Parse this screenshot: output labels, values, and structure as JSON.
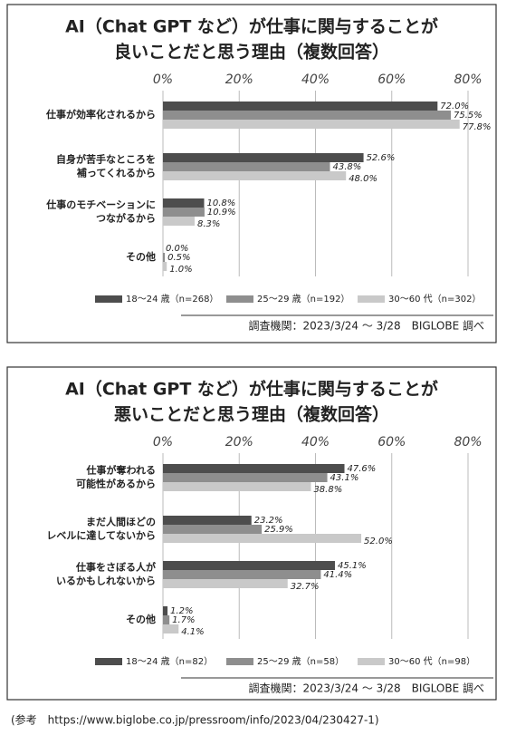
{
  "chart_data": [
    {
      "type": "bar",
      "orientation": "horizontal",
      "title": [
        "AI（Chat GPT など）が仕事に関与することが",
        "良いことだと思う理由（複数回答）"
      ],
      "categories": [
        [
          "仕事が効率化されるから"
        ],
        [
          "自身が苦手なところを",
          "補ってくれるから"
        ],
        [
          "仕事のモチベーションに",
          "つながるから"
        ],
        [
          "その他"
        ]
      ],
      "series": [
        {
          "name": "18～24 歳（n=268）",
          "color": "#4d4d4d",
          "values": [
            72.0,
            52.6,
            10.8,
            0.0
          ],
          "value_labels": [
            "72.0%",
            "52.6%",
            "10.8%",
            "0.0%"
          ]
        },
        {
          "name": "25～29 歳（n=192）",
          "color": "#8e8e8e",
          "values": [
            75.5,
            43.8,
            10.9,
            0.5
          ],
          "value_labels": [
            "75.5%",
            "43.8%",
            "10.9%",
            "0.5%"
          ]
        },
        {
          "name": "30～60 代（n=302）",
          "color": "#c9c9c9",
          "values": [
            77.8,
            48.0,
            8.3,
            1.0
          ],
          "value_labels": [
            "77.8%",
            "48.0%",
            "8.3%",
            "1.0%"
          ]
        }
      ],
      "xlim": [
        0,
        80
      ],
      "xticks": [
        {
          "value": 0,
          "label": "0%"
        },
        {
          "value": 20,
          "label": "20%"
        },
        {
          "value": 40,
          "label": "40%"
        },
        {
          "value": 60,
          "label": "60%"
        },
        {
          "value": 80,
          "label": "80%"
        }
      ],
      "grid": true,
      "source": "調査機関：2023/3/24 ～ 3/28　BIGLOBE 調べ"
    },
    {
      "type": "bar",
      "orientation": "horizontal",
      "title": [
        "AI（Chat GPT など）が仕事に関与することが",
        "悪いことだと思う理由（複数回答）"
      ],
      "categories": [
        [
          "仕事が奪われる",
          "可能性があるから"
        ],
        [
          "まだ人間ほどの",
          "レベルに達してないから"
        ],
        [
          "仕事をさぼる人が",
          "いるかもしれないから"
        ],
        [
          "その他"
        ]
      ],
      "series": [
        {
          "name": "18～24 歳（n=82）",
          "color": "#4d4d4d",
          "values": [
            47.6,
            23.2,
            45.1,
            1.2
          ],
          "value_labels": [
            "47.6%",
            "23.2%",
            "45.1%",
            "1.2%"
          ]
        },
        {
          "name": "25～29 歳（n=58）",
          "color": "#8e8e8e",
          "values": [
            43.1,
            25.9,
            41.4,
            1.7
          ],
          "value_labels": [
            "43.1%",
            "25.9%",
            "41.4%",
            "1.7%"
          ]
        },
        {
          "name": "30～60 代（n=98）",
          "color": "#c9c9c9",
          "values": [
            38.8,
            52.0,
            32.7,
            4.1
          ],
          "value_labels": [
            "38.8%",
            "52.0%",
            "32.7%",
            "4.1%"
          ]
        }
      ],
      "xlim": [
        0,
        80
      ],
      "xticks": [
        {
          "value": 0,
          "label": "0%"
        },
        {
          "value": 20,
          "label": "20%"
        },
        {
          "value": 40,
          "label": "40%"
        },
        {
          "value": 60,
          "label": "60%"
        },
        {
          "value": 80,
          "label": "80%"
        }
      ],
      "grid": true,
      "source": "調査機関：2023/3/24 ～ 3/28　BIGLOBE 調べ"
    }
  ],
  "footer": "(参考　https://www.biglobe.co.jp/pressroom/info/2023/04/230427-1)"
}
